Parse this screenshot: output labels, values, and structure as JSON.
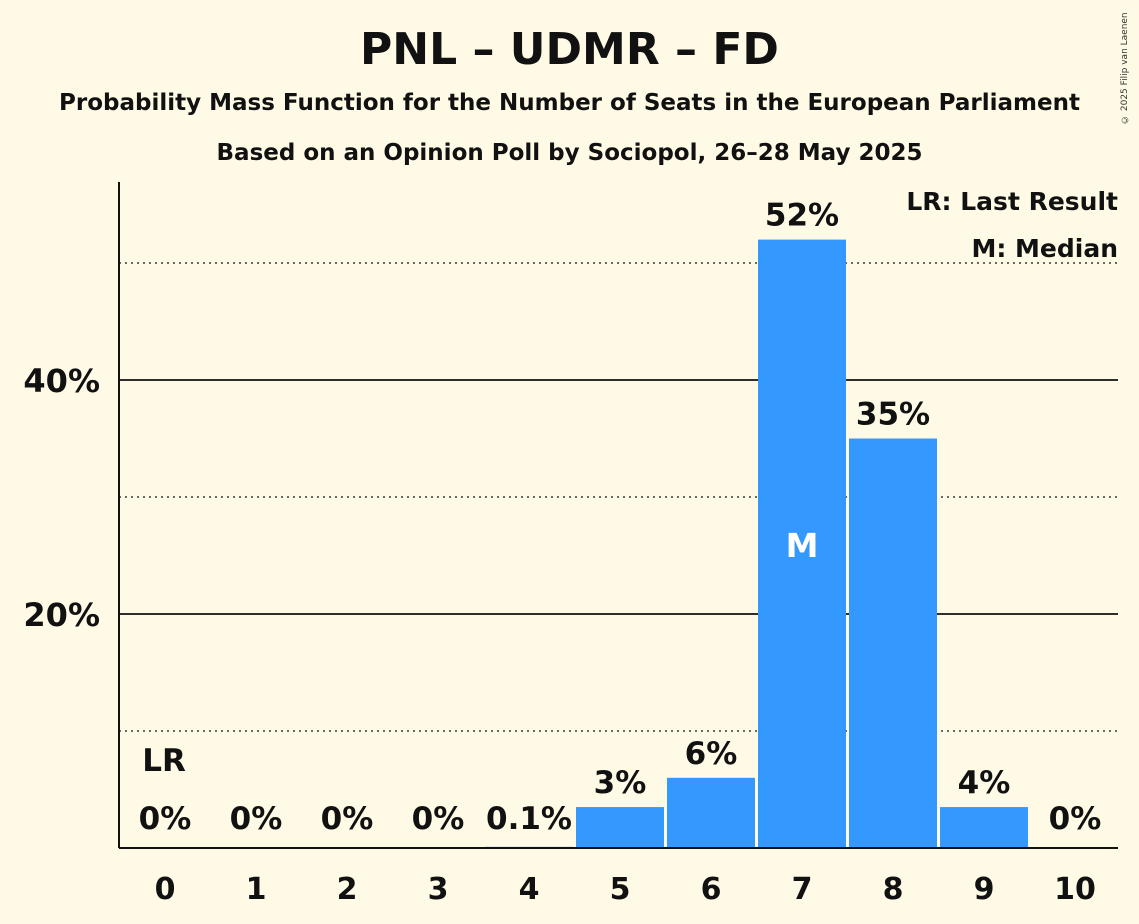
{
  "title": "PNL – UDMR – FD",
  "subtitle": "Probability Mass Function for the Number of Seats in the European Parliament",
  "source": "Based on an Opinion Poll by Sociopol, 26–28 May 2025",
  "copyright": "© 2025 Filip van Laenen",
  "colors": {
    "background": "#FFFAE5",
    "bar": "#3399FF",
    "text": "#111111"
  },
  "chart_data": {
    "type": "bar",
    "categories": [
      "0",
      "1",
      "2",
      "3",
      "4",
      "5",
      "6",
      "7",
      "8",
      "9",
      "10"
    ],
    "values": [
      0,
      0,
      0,
      0,
      0.1,
      3.5,
      6,
      52,
      35,
      3.5,
      0
    ],
    "value_labels": [
      "0%",
      "0%",
      "0%",
      "0%",
      "0.1%",
      "3%",
      "6%",
      "52%",
      "35%",
      "4%",
      "0%"
    ],
    "ylim": [
      0,
      57
    ],
    "yticks": [
      20,
      40
    ],
    "ytick_labels": [
      "20%",
      "40%"
    ],
    "dotted_gridlines": [
      10,
      30,
      50
    ],
    "grid": true,
    "last_result": {
      "category": "0",
      "label": "LR"
    },
    "median": {
      "category": "7",
      "label": "M"
    },
    "legend": {
      "position": "top-right",
      "entries": [
        "LR: Last Result",
        "M: Median"
      ]
    }
  }
}
